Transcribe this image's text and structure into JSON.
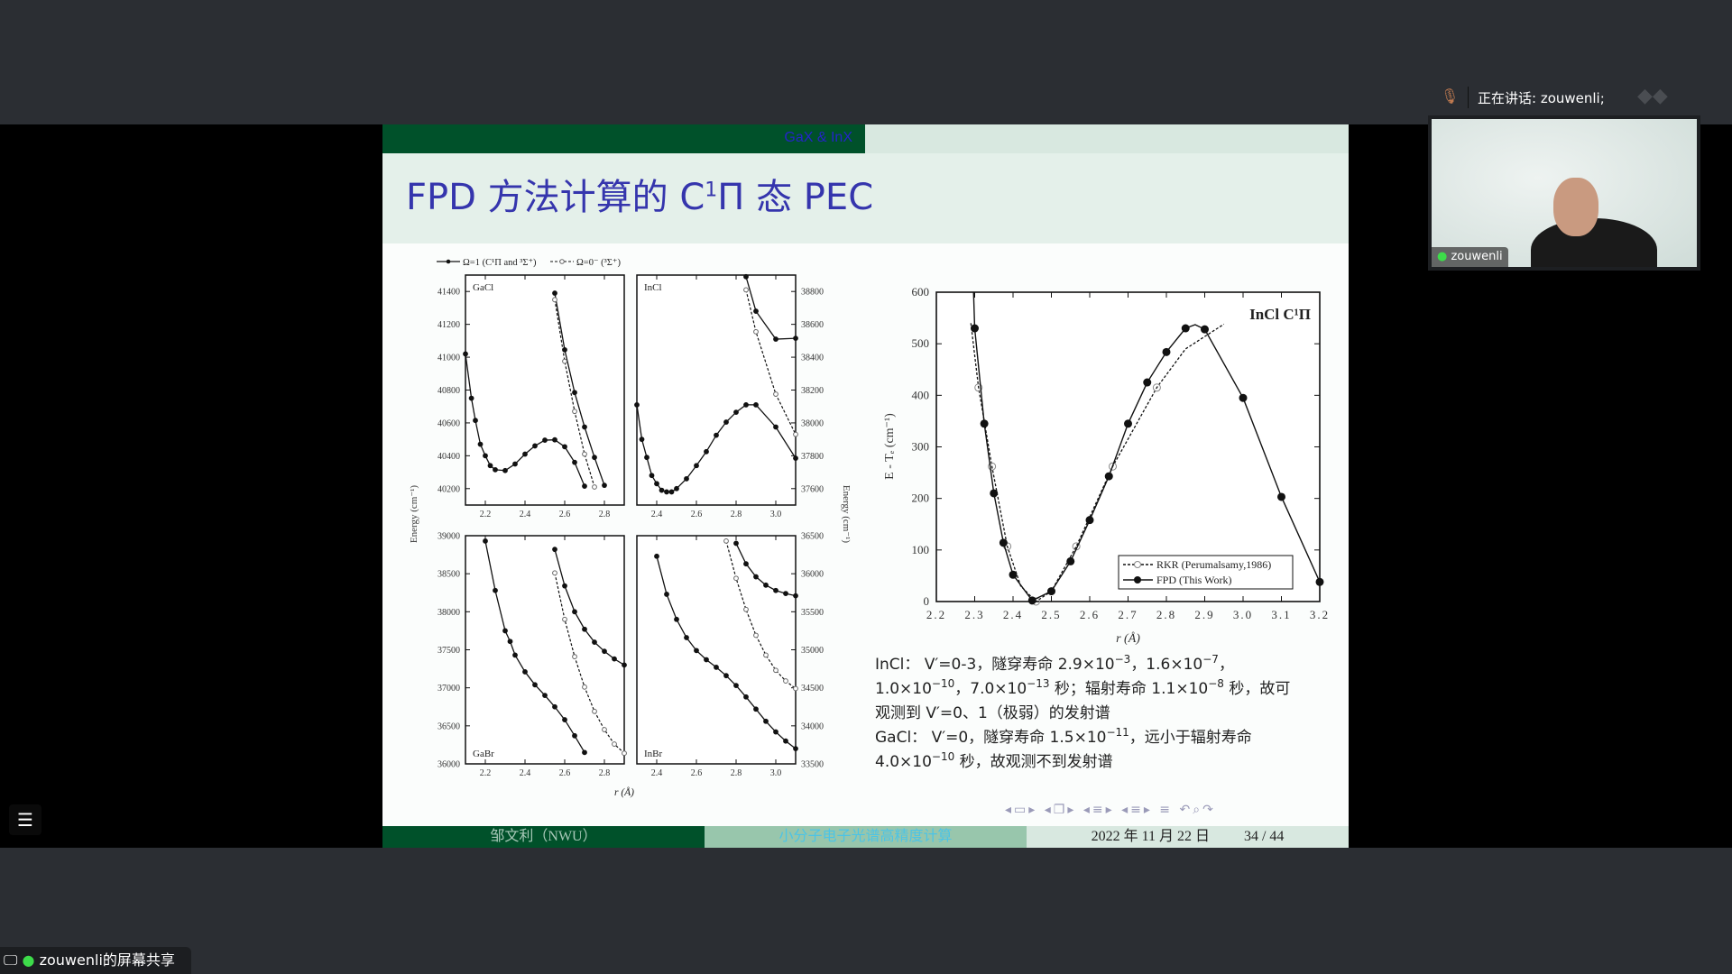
{
  "slide": {
    "header_section": "GaX & InX",
    "title_prefix": "FPD 方法计算的 C",
    "title_sup": "1",
    "title_suffix": "Π 态 PEC",
    "footer": {
      "author": "邹文利（NWU）",
      "course": "小分子电子光谱高精度计算",
      "date": "2022 年 11 月 22 日",
      "page": "34 / 44"
    },
    "nav_icons": [
      "nav-prev-frame-icon",
      "nav-frame-icon",
      "nav-next-frame-icon",
      "nav-subsection-icon",
      "nav-section-icon",
      "nav-toc-icon",
      "nav-undo-icon",
      "nav-search-icon",
      "nav-redo-icon"
    ],
    "text_lines": [
      [
        {
          "t": "InCl： V′=0-3，隧穿寿命 2.9×10"
        },
        {
          "sup": "−3"
        },
        {
          "t": "，1.6×10"
        },
        {
          "sup": "−7"
        },
        {
          "t": "，"
        }
      ],
      [
        {
          "t": "1.0×10"
        },
        {
          "sup": "−10"
        },
        {
          "t": "，7.0×10"
        },
        {
          "sup": "−13"
        },
        {
          "t": " 秒；辐射寿命 1.1×10"
        },
        {
          "sup": "−8"
        },
        {
          "t": " 秒，故可"
        }
      ],
      [
        {
          "t": "观测到 V′=0、1（极弱）的发射谱"
        }
      ],
      [
        {
          "t": "GaCl： V′=0，隧穿寿命 1.5×10"
        },
        {
          "sup": "−11"
        },
        {
          "t": "，远小于辐射寿命"
        }
      ],
      [
        {
          "t": "4.0×10"
        },
        {
          "sup": "−10"
        },
        {
          "t": " 秒，故观测不到发射谱"
        }
      ]
    ]
  },
  "meeting": {
    "speaking_label": "正在讲话: zouwenli;",
    "participant_name": "zouwenli",
    "share_label": "zouwenli的屏幕共享",
    "mic_color": "#3ddc4a"
  },
  "chart_data": [
    {
      "type": "line",
      "legend": [
        "Ω=1 (C¹Π and ³Σ⁺)",
        "Ω=0⁻ (³Σ⁺)"
      ],
      "xlabel": "r (Å)",
      "ylabel_left": "Energy (cm⁻¹)",
      "ylabel_right": "Energy (cm⁻¹)",
      "panels": [
        {
          "name": "GaCl",
          "xlim": [
            2.1,
            2.9
          ],
          "ylim": [
            40100,
            41500
          ],
          "xticks": [
            2.2,
            2.4,
            2.6,
            2.8
          ],
          "yticks": [
            40200,
            40400,
            40600,
            40800,
            41000,
            41200,
            41400
          ],
          "yaxis": "left",
          "series": [
            {
              "legend": 0,
              "x": [
                2.1,
                2.13,
                2.15,
                2.175,
                2.2,
                2.225,
                2.25,
                2.3,
                2.35,
                2.4,
                2.45,
                2.5,
                2.55,
                2.6,
                2.65,
                2.7
              ],
              "y": [
                41020,
                40750,
                40615,
                40470,
                40400,
                40340,
                40315,
                40310,
                40350,
                40410,
                40460,
                40495,
                40497,
                40455,
                40360,
                40215
              ]
            },
            {
              "legend": 0,
              "x": [
                2.55,
                2.6,
                2.65,
                2.7,
                2.75,
                2.8
              ],
              "y": [
                41390,
                41045,
                40785,
                40575,
                40390,
                40220
              ]
            },
            {
              "legend": 1,
              "x": [
                2.55,
                2.6,
                2.65,
                2.7,
                2.75
              ],
              "y": [
                41350,
                40975,
                40670,
                40410,
                40210
              ]
            }
          ]
        },
        {
          "name": "InCl",
          "xlim": [
            2.3,
            3.1
          ],
          "ylim": [
            37500,
            38900
          ],
          "xticks": [
            2.4,
            2.6,
            2.8,
            3.0
          ],
          "yticks": [
            37600,
            37800,
            38000,
            38200,
            38400,
            38600,
            38800
          ],
          "yaxis": "right",
          "series": [
            {
              "legend": 0,
              "x": [
                2.3,
                2.325,
                2.35,
                2.375,
                2.4,
                2.425,
                2.45,
                2.475,
                2.5,
                2.55,
                2.6,
                2.65,
                2.7,
                2.75,
                2.8,
                2.85,
                2.9,
                3.0,
                3.1
              ],
              "y": [
                38110,
                37900,
                37790,
                37680,
                37630,
                37590,
                37580,
                37580,
                37600,
                37660,
                37740,
                37825,
                37925,
                38005,
                38065,
                38110,
                38110,
                37975,
                37785
              ]
            },
            {
              "legend": 0,
              "x": [
                2.85,
                2.9,
                3.0,
                3.1
              ],
              "y": [
                38890,
                38680,
                38510,
                38515
              ]
            },
            {
              "legend": 1,
              "x": [
                2.85,
                2.9,
                3.0,
                3.1
              ],
              "y": [
                38810,
                38555,
                38175,
                37930
              ]
            }
          ]
        },
        {
          "name": "GaBr",
          "xlim": [
            2.1,
            2.9
          ],
          "ylim": [
            36000,
            39000
          ],
          "xticks": [
            2.2,
            2.4,
            2.6,
            2.8
          ],
          "yticks": [
            36000,
            36500,
            37000,
            37500,
            38000,
            38500,
            39000
          ],
          "yaxis": "left",
          "series": [
            {
              "legend": 0,
              "x": [
                2.2,
                2.25,
                2.3,
                2.325,
                2.35,
                2.4,
                2.45,
                2.5,
                2.55,
                2.6,
                2.65,
                2.7
              ],
              "y": [
                38930,
                38280,
                37750,
                37610,
                37430,
                37210,
                37040,
                36900,
                36750,
                36580,
                36370,
                36150
              ]
            },
            {
              "legend": 0,
              "x": [
                2.55,
                2.6,
                2.65,
                2.7,
                2.75,
                2.8,
                2.85,
                2.9
              ],
              "y": [
                38820,
                38340,
                38000,
                37770,
                37600,
                37480,
                37380,
                37300
              ]
            },
            {
              "legend": 1,
              "x": [
                2.55,
                2.6,
                2.65,
                2.7,
                2.75,
                2.8,
                2.85,
                2.9
              ],
              "y": [
                38510,
                37900,
                37410,
                37010,
                36690,
                36450,
                36260,
                36140
              ]
            }
          ]
        },
        {
          "name": "InBr",
          "xlim": [
            2.3,
            3.1
          ],
          "ylim": [
            33500,
            36500
          ],
          "xticks": [
            2.4,
            2.6,
            2.8,
            3.0
          ],
          "yticks": [
            33500,
            34000,
            34500,
            35000,
            35500,
            36000,
            36500
          ],
          "yaxis": "right",
          "series": [
            {
              "legend": 0,
              "x": [
                2.4,
                2.45,
                2.5,
                2.55,
                2.6,
                2.65,
                2.7,
                2.75,
                2.8,
                2.85,
                2.9,
                2.95,
                3.0,
                3.05,
                3.1
              ],
              "y": [
                36230,
                35730,
                35400,
                35160,
                34990,
                34870,
                34770,
                34660,
                34530,
                34380,
                34220,
                34060,
                33920,
                33800,
                33700
              ]
            },
            {
              "legend": 0,
              "x": [
                2.8,
                2.85,
                2.9,
                2.95,
                3.0,
                3.05,
                3.1
              ],
              "y": [
                36400,
                36130,
                35960,
                35850,
                35780,
                35740,
                35710
              ]
            },
            {
              "legend": 1,
              "x": [
                2.75,
                2.8,
                2.85,
                2.9,
                2.95,
                3.0,
                3.05,
                3.1
              ],
              "y": [
                36430,
                35940,
                35530,
                35190,
                34930,
                34730,
                34590,
                34490
              ]
            }
          ]
        }
      ]
    },
    {
      "type": "line",
      "title": "InCl   C¹Π",
      "xlabel": "r (Å)",
      "ylabel": "E - Tₑ (cm⁻¹)",
      "xlim": [
        2.2,
        3.2
      ],
      "ylim": [
        0,
        600
      ],
      "xticks": [
        "2.2",
        "2.3",
        "2.4",
        "2.5",
        "2.6",
        "2.7",
        "2.8",
        "2.9",
        "3.0",
        "3.1",
        "3.2"
      ],
      "yticks": [
        "0",
        "100",
        "200",
        "300",
        "400",
        "500",
        "600"
      ],
      "legend_position": "bottom-right",
      "series": [
        {
          "name": "RKR (Perumalsamy,1986)",
          "style": "dotted-open",
          "x": [
            2.31,
            2.345,
            2.385,
            2.46,
            2.565,
            2.66,
            2.775
          ],
          "y": [
            415,
            262,
            107,
            0,
            107,
            262,
            415
          ]
        },
        {
          "name": "FPD (This Work)",
          "style": "solid-filled",
          "x": [
            2.3,
            2.325,
            2.35,
            2.375,
            2.4,
            2.45,
            2.5,
            2.55,
            2.6,
            2.65,
            2.7,
            2.75,
            2.8,
            2.85,
            2.9,
            3.0,
            3.1,
            3.2
          ],
          "y": [
            530,
            345,
            210,
            114,
            52,
            2,
            20,
            78,
            158,
            243,
            345,
            425,
            484,
            530,
            528,
            395,
            203,
            38
          ]
        }
      ]
    }
  ]
}
